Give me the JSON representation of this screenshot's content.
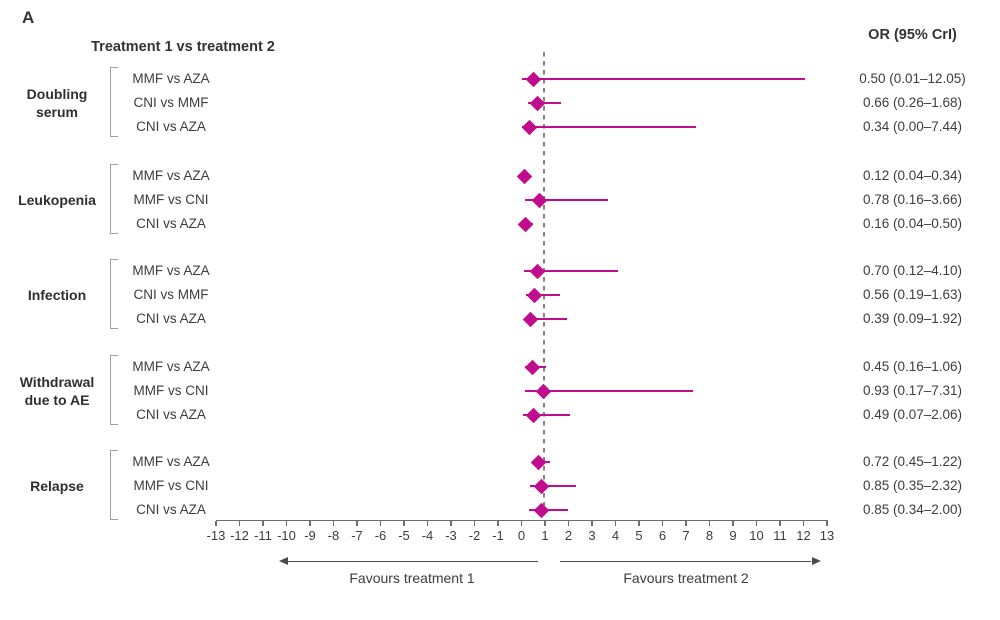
{
  "panel_label": "A",
  "header": {
    "left_title": "Treatment 1 vs treatment 2",
    "right_title": "OR (95% CrI)"
  },
  "colors": {
    "accent": "#c00d8e",
    "reference_line": "#8f7e7e",
    "axis": "#6e6e6e",
    "text": "#3d3d3d",
    "bracket": "#9e9e9e"
  },
  "chart_data": {
    "type": "forest",
    "x_axis": {
      "scale": "linear",
      "min": -13,
      "max": 13,
      "tick_step": 1,
      "tick_labels": [
        "-13",
        "-12",
        "-11",
        "-10",
        "-9",
        "-8",
        "-7",
        "-6",
        "-5",
        "-4",
        "-3",
        "-2",
        "-1",
        "0",
        "1",
        "2",
        "3",
        "4",
        "5",
        "6",
        "7",
        "8",
        "9",
        "10",
        "11",
        "12",
        "13"
      ],
      "reference_value": 1,
      "grid": false
    },
    "footer": {
      "left_arrow_label": "Favours treatment 1",
      "right_arrow_label": "Favours treatment 2"
    },
    "groups": [
      {
        "name": "Doubling serum",
        "name_lines": [
          "Doubling",
          "serum"
        ],
        "rows": [
          {
            "comparison": "MMF vs AZA",
            "or": 0.5,
            "ci_low": 0.01,
            "ci_high": 12.05,
            "or_text": "0.50 (0.01–12.05)"
          },
          {
            "comparison": "CNI vs MMF",
            "or": 0.66,
            "ci_low": 0.26,
            "ci_high": 1.68,
            "or_text": "0.66 (0.26–1.68)"
          },
          {
            "comparison": "CNI vs AZA",
            "or": 0.34,
            "ci_low": 0.0,
            "ci_high": 7.44,
            "or_text": "0.34 (0.00–7.44)"
          }
        ]
      },
      {
        "name": "Leukopenia",
        "name_lines": [
          "Leukopenia"
        ],
        "rows": [
          {
            "comparison": "MMF vs AZA",
            "or": 0.12,
            "ci_low": 0.04,
            "ci_high": 0.34,
            "or_text": "0.12 (0.04–0.34)"
          },
          {
            "comparison": "MMF vs CNI",
            "or": 0.78,
            "ci_low": 0.16,
            "ci_high": 3.66,
            "or_text": "0.78 (0.16–3.66)"
          },
          {
            "comparison": "CNI vs AZA",
            "or": 0.16,
            "ci_low": 0.04,
            "ci_high": 0.5,
            "or_text": "0.16 (0.04–0.50)"
          }
        ]
      },
      {
        "name": "Infection",
        "name_lines": [
          "Infection"
        ],
        "rows": [
          {
            "comparison": "MMF vs AZA",
            "or": 0.7,
            "ci_low": 0.12,
            "ci_high": 4.1,
            "or_text": "0.70 (0.12–4.10)"
          },
          {
            "comparison": "CNI vs MMF",
            "or": 0.56,
            "ci_low": 0.19,
            "ci_high": 1.63,
            "or_text": "0.56 (0.19–1.63)"
          },
          {
            "comparison": "CNI vs AZA",
            "or": 0.39,
            "ci_low": 0.09,
            "ci_high": 1.92,
            "or_text": "0.39 (0.09–1.92)"
          }
        ]
      },
      {
        "name": "Withdrawal due to AE",
        "name_lines": [
          "Withdrawal",
          "due to AE"
        ],
        "rows": [
          {
            "comparison": "MMF vs AZA",
            "or": 0.45,
            "ci_low": 0.16,
            "ci_high": 1.06,
            "or_text": "0.45 (0.16–1.06)"
          },
          {
            "comparison": "MMF vs CNI",
            "or": 0.93,
            "ci_low": 0.17,
            "ci_high": 7.31,
            "or_text": "0.93 (0.17–7.31)"
          },
          {
            "comparison": "CNI vs AZA",
            "or": 0.49,
            "ci_low": 0.07,
            "ci_high": 2.06,
            "or_text": "0.49 (0.07–2.06)"
          }
        ]
      },
      {
        "name": "Relapse",
        "name_lines": [
          "Relapse"
        ],
        "rows": [
          {
            "comparison": "MMF vs AZA",
            "or": 0.72,
            "ci_low": 0.45,
            "ci_high": 1.22,
            "or_text": "0.72 (0.45–1.22)"
          },
          {
            "comparison": "MMF vs CNI",
            "or": 0.85,
            "ci_low": 0.35,
            "ci_high": 2.32,
            "or_text": "0.85 (0.35–2.32)"
          },
          {
            "comparison": "CNI vs AZA",
            "or": 0.85,
            "ci_low": 0.34,
            "ci_high": 2.0,
            "or_text": "0.85 (0.34–2.00)"
          }
        ]
      }
    ]
  }
}
